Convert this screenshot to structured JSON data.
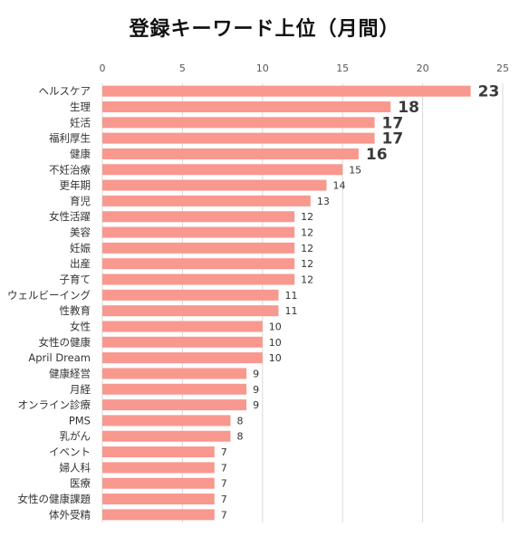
{
  "chart_data": {
    "type": "bar",
    "orientation": "horizontal",
    "title": "登録キーワード上位（月間）",
    "xlim": [
      0,
      25
    ],
    "x_ticks": [
      0,
      5,
      10,
      15,
      20,
      25
    ],
    "grid": true,
    "bar_color": "#F8988F",
    "categories": [
      "ヘルスケア",
      "生理",
      "妊活",
      "福利厚生",
      "健康",
      "不妊治療",
      "更年期",
      "育児",
      "女性活躍",
      "美容",
      "妊娠",
      "出産",
      "子育て",
      "ウェルビーイング",
      "性教育",
      "女性",
      "女性の健康",
      "April Dream",
      "健康経営",
      "月経",
      "オンライン診療",
      "PMS",
      "乳がん",
      "イベント",
      "婦人科",
      "医療",
      "女性の健康課題",
      "体外受精"
    ],
    "values": [
      23,
      18,
      17,
      17,
      16,
      15,
      14,
      13,
      12,
      12,
      12,
      12,
      12,
      11,
      11,
      10,
      10,
      10,
      9,
      9,
      9,
      8,
      8,
      7,
      7,
      7,
      7,
      7
    ],
    "big_labels": 5
  }
}
